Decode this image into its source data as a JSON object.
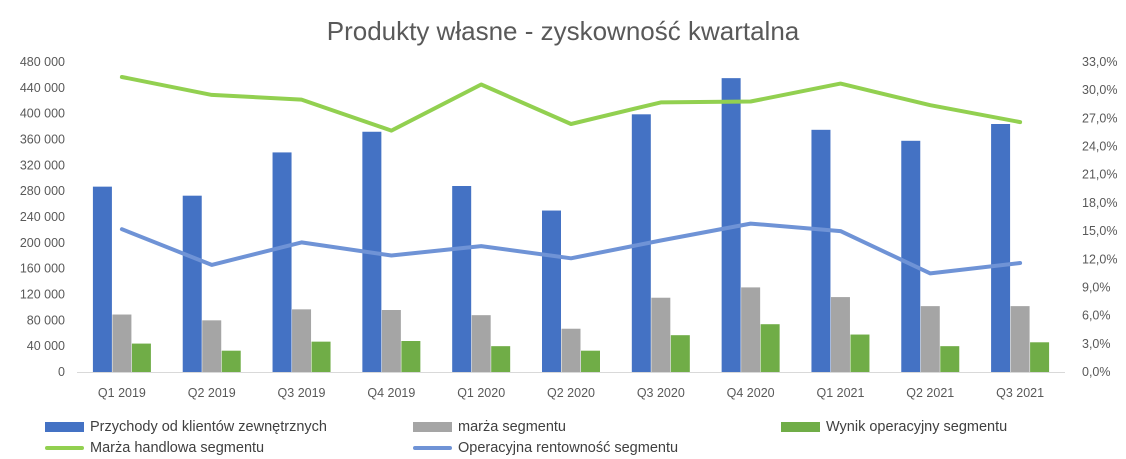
{
  "chart_data": {
    "type": "bar",
    "title": "Produkty własne - zyskowność kwartalna",
    "categories": [
      "Q1 2019",
      "Q2 2019",
      "Q3 2019",
      "Q4 2019",
      "Q1 2020",
      "Q2 2020",
      "Q3 2020",
      "Q4 2020",
      "Q1 2021",
      "Q2 2021",
      "Q3 2021"
    ],
    "y_left": {
      "min": 0,
      "max": 480000,
      "ticks": [
        "0",
        "40 000",
        "80 000",
        "120 000",
        "160 000",
        "200 000",
        "240 000",
        "280 000",
        "320 000",
        "360 000",
        "400 000",
        "440 000",
        "480 000"
      ]
    },
    "y_right": {
      "min": 0,
      "max": 0.33,
      "ticks": [
        "0,0%",
        "3,0%",
        "6,0%",
        "9,0%",
        "12,0%",
        "15,0%",
        "18,0%",
        "21,0%",
        "24,0%",
        "27,0%",
        "30,0%",
        "33,0%"
      ]
    },
    "series": [
      {
        "name": "Przychody od klientów zewnętrznych",
        "kind": "bar",
        "axis": "left",
        "color": "#4472C4",
        "values": [
          287000,
          273000,
          340000,
          372000,
          288000,
          250000,
          399000,
          455000,
          375000,
          358000,
          384000
        ]
      },
      {
        "name": "marża segmentu",
        "kind": "bar",
        "axis": "left",
        "color": "#A5A5A5",
        "values": [
          89000,
          80000,
          97000,
          96000,
          88000,
          67000,
          115000,
          131000,
          116000,
          102000,
          102000
        ]
      },
      {
        "name": "Wynik operacyjny segmentu",
        "kind": "bar",
        "axis": "left",
        "color": "#70AD47",
        "values": [
          44000,
          33000,
          47000,
          48000,
          40000,
          33000,
          57000,
          74000,
          58000,
          40000,
          46000
        ]
      },
      {
        "name": "Marża handlowa segmentu",
        "kind": "line",
        "axis": "right",
        "color": "#92D050",
        "values": [
          0.314,
          0.295,
          0.29,
          0.257,
          0.306,
          0.264,
          0.287,
          0.288,
          0.307,
          0.284,
          0.266
        ]
      },
      {
        "name": "Operacyjna rentowność segmentu",
        "kind": "line",
        "axis": "right",
        "color": "#6F93D6",
        "values": [
          0.152,
          0.114,
          0.138,
          0.124,
          0.134,
          0.121,
          0.14,
          0.158,
          0.15,
          0.105,
          0.116
        ]
      }
    ],
    "grid": false,
    "legend_position": "bottom"
  }
}
